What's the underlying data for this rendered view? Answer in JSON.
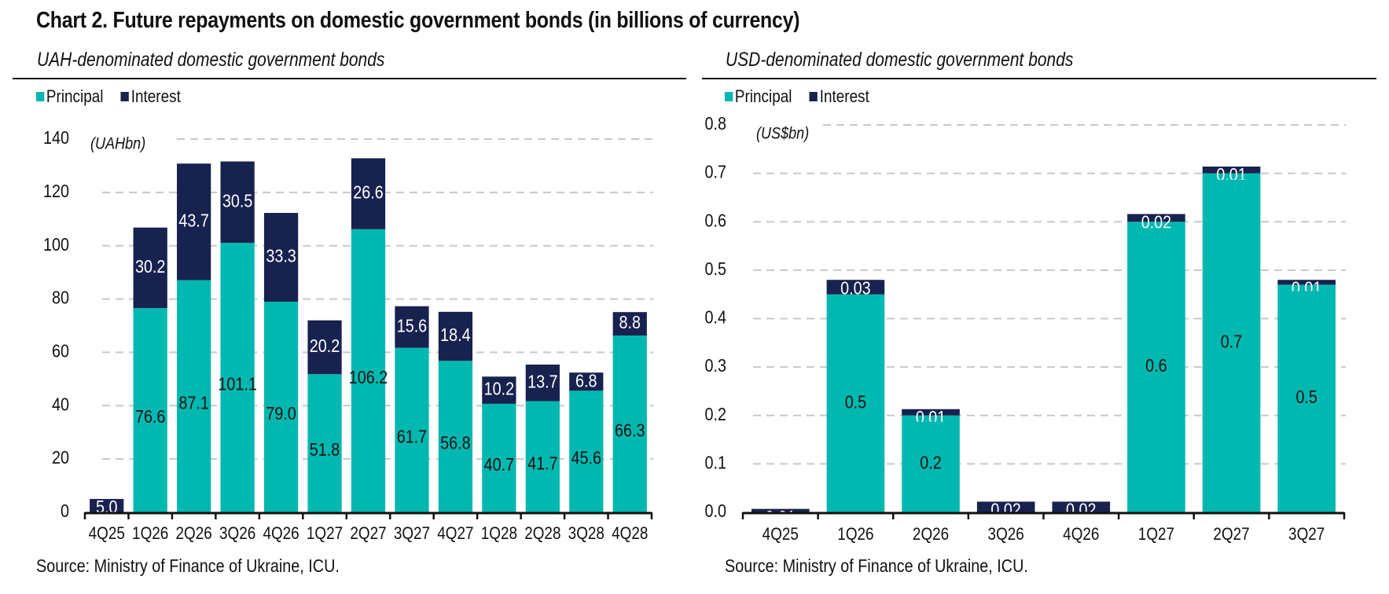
{
  "title": "Chart 2. Future repayments on domestic government bonds (in billions of currency)",
  "source_left": "Source: Ministry of Finance of Ukraine, ICU.",
  "source_right": "Source: Ministry of Finance of Ukraine, ICU.",
  "colors": {
    "principal": "#00B8B0",
    "interest": "#18224F",
    "grid": "#C8C8C8",
    "axis": "#111111"
  },
  "chart_data": [
    {
      "type": "bar",
      "stacked": true,
      "title": "UAH-denominated domestic government bonds",
      "unit_label": "(UAHbn)",
      "xlabel": "",
      "ylabel": "",
      "ylim": [
        0,
        140
      ],
      "yticks": [
        0,
        20,
        40,
        60,
        80,
        100,
        120,
        140
      ],
      "ytick_labels": [
        "0",
        "20",
        "40",
        "60",
        "80",
        "100",
        "120",
        "140"
      ],
      "grid": true,
      "legend": {
        "placement": "top-left",
        "entries": [
          "Principal",
          "Interest"
        ]
      },
      "categories": [
        "4Q25",
        "1Q26",
        "2Q26",
        "3Q26",
        "4Q26",
        "1Q27",
        "2Q27",
        "3Q27",
        "4Q27",
        "1Q28",
        "2Q28",
        "3Q28",
        "4Q28"
      ],
      "series": [
        {
          "name": "Principal",
          "values": [
            0,
            76.6,
            87.1,
            101.1,
            79.0,
            51.8,
            106.2,
            61.7,
            56.8,
            40.7,
            41.7,
            45.6,
            66.3
          ],
          "labels": [
            "",
            "76.6",
            "87.1",
            "101.1",
            "79.0",
            "51.8",
            "106.2",
            "61.7",
            "56.8",
            "40.7",
            "41.7",
            "45.6",
            "66.3"
          ]
        },
        {
          "name": "Interest",
          "values": [
            5.0,
            30.2,
            43.7,
            30.5,
            33.3,
            20.2,
            26.6,
            15.6,
            18.4,
            10.2,
            13.7,
            6.8,
            8.8
          ],
          "labels": [
            "5.0",
            "30.2",
            "43.7",
            "30.5",
            "33.3",
            "20.2",
            "26.6",
            "15.6",
            "18.4",
            "10.2",
            "13.7",
            "6.8",
            "8.8"
          ]
        }
      ]
    },
    {
      "type": "bar",
      "stacked": true,
      "title": "USD-denominated domestic government bonds",
      "unit_label": "(US$bn)",
      "xlabel": "",
      "ylabel": "",
      "ylim": [
        0,
        0.8
      ],
      "yticks": [
        0,
        0.1,
        0.2,
        0.3,
        0.4,
        0.5,
        0.6,
        0.7,
        0.8
      ],
      "ytick_labels": [
        "0.0",
        "0.1",
        "0.2",
        "0.3",
        "0.4",
        "0.5",
        "0.6",
        "0.7",
        "0.8"
      ],
      "grid": true,
      "legend": {
        "placement": "top-left",
        "entries": [
          "Principal",
          "Interest"
        ]
      },
      "categories": [
        "4Q25",
        "1Q26",
        "2Q26",
        "3Q26",
        "4Q26",
        "1Q27",
        "2Q27",
        "3Q27"
      ],
      "series": [
        {
          "name": "Principal",
          "values": [
            0,
            0.45,
            0.2,
            0,
            0,
            0.6,
            0.7,
            0.47
          ],
          "labels": [
            "",
            "0.5",
            "0.2",
            "",
            "",
            "0.6",
            "0.7",
            "0.5"
          ]
        },
        {
          "name": "Interest",
          "values": [
            0.007,
            0.03,
            0.013,
            0.022,
            0.022,
            0.016,
            0.014,
            0.01
          ],
          "labels": [
            "0.01",
            "0.03",
            "0.01",
            "0.02",
            "0.02",
            "0.02",
            "0.01",
            "0.01"
          ]
        }
      ]
    }
  ]
}
